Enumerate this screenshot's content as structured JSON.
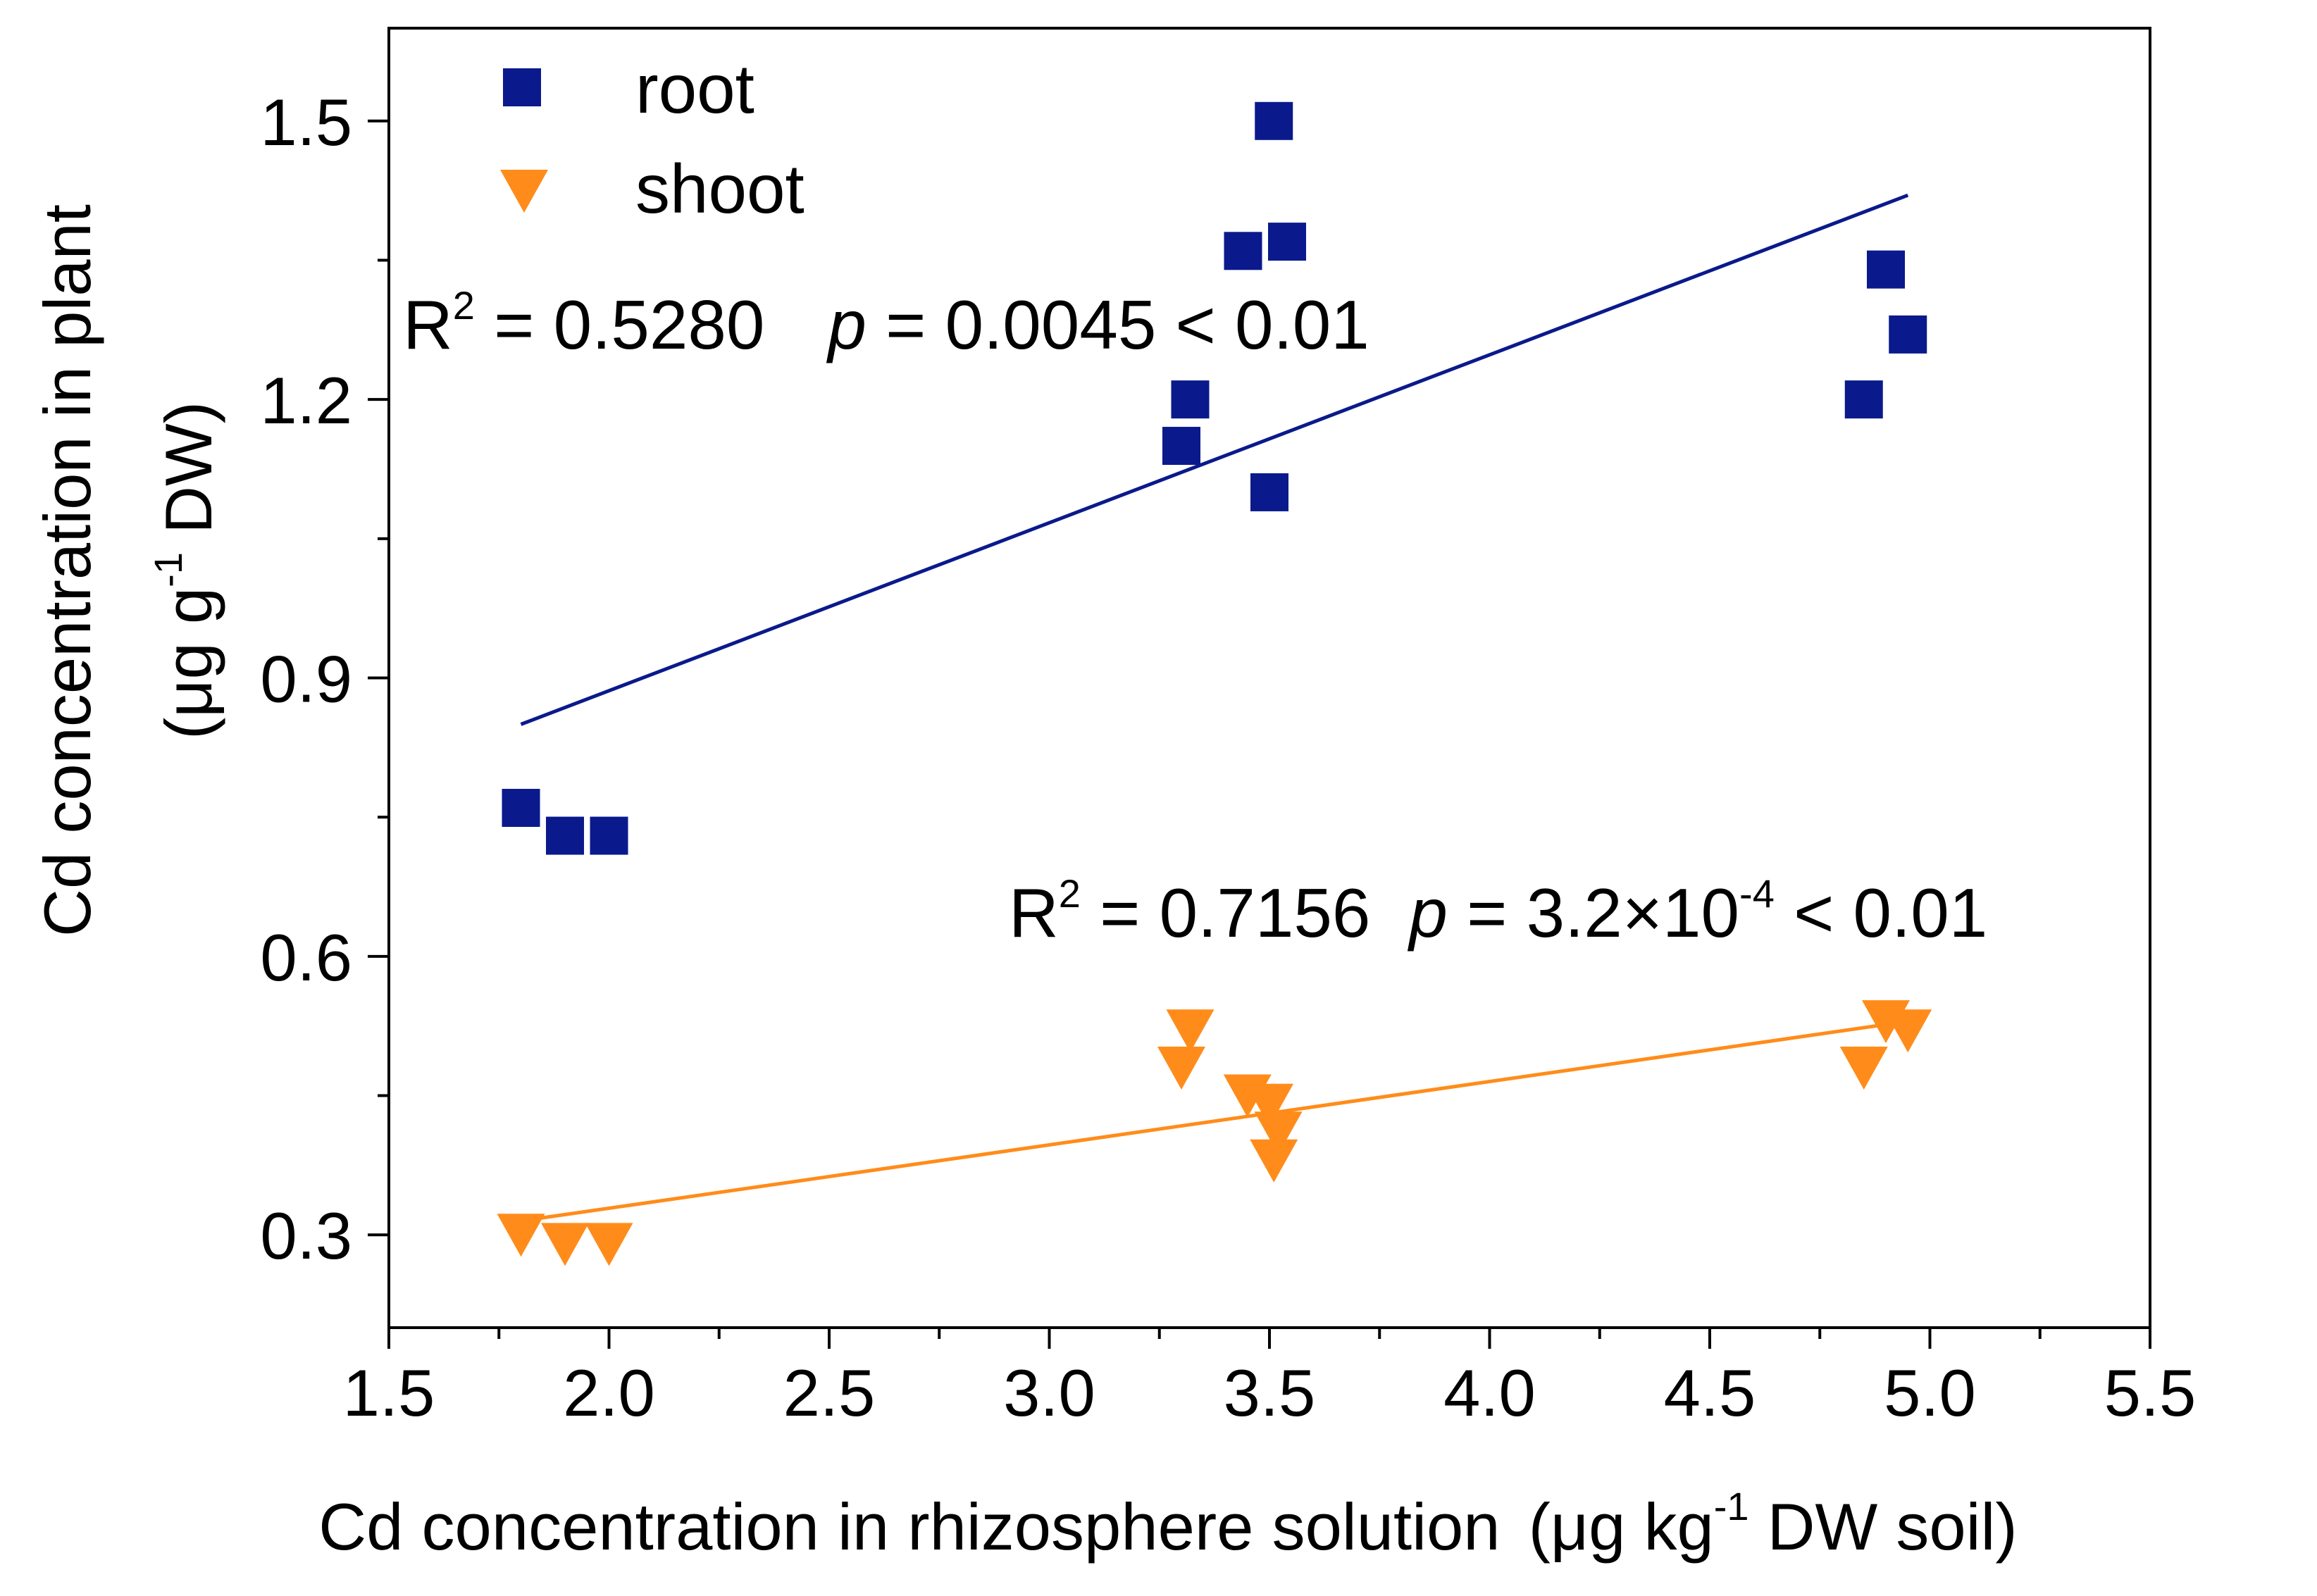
{
  "chart_data": {
    "type": "scatter",
    "title": "",
    "xlabel": "Cd concentration in rhizosphere solution",
    "xlabel_unit": {
      "open": "(",
      "mu": "μ",
      "pre": "g kg",
      "exp": "-1",
      "post": " DW soil)"
    },
    "ylabel": "Cd concentration in plant",
    "ylabel_unit": {
      "open": "(",
      "mu": "μ",
      "pre": "g g",
      "exp": "-1",
      "post": " DW)"
    },
    "xlim": [
      1.5,
      5.5
    ],
    "ylim": [
      0.2,
      1.6
    ],
    "xticks": [
      "1.5",
      "2.0",
      "2.5",
      "3.0",
      "3.5",
      "4.0",
      "4.5",
      "5.0",
      "5.5"
    ],
    "yticks": [
      "0.3",
      "0.6",
      "0.9",
      "1.2",
      "1.5"
    ],
    "legend_position": "top-left",
    "series": [
      {
        "name": "root",
        "marker": "square",
        "color": "#0a1a8c",
        "points": [
          [
            1.8,
            0.76
          ],
          [
            1.9,
            0.73
          ],
          [
            2.0,
            0.73
          ],
          [
            3.3,
            1.15
          ],
          [
            3.32,
            1.2
          ],
          [
            3.44,
            1.36
          ],
          [
            3.5,
            1.1
          ],
          [
            3.51,
            1.5
          ],
          [
            3.54,
            1.37
          ],
          [
            4.85,
            1.2
          ],
          [
            4.9,
            1.34
          ],
          [
            4.95,
            1.27
          ]
        ],
        "fit": {
          "x": [
            1.8,
            4.95
          ],
          "y": [
            0.85,
            1.42
          ]
        },
        "annotation": {
          "r2_label": "R",
          "r2_exp": "2",
          "r2_value": " = 0.5280",
          "p_symbol": "p",
          "p_text": " = 0.0045 < 0.01"
        }
      },
      {
        "name": "shoot",
        "marker": "triangle-down",
        "color": "#ff8c1a",
        "points": [
          [
            1.8,
            0.3
          ],
          [
            1.9,
            0.29
          ],
          [
            2.0,
            0.29
          ],
          [
            3.3,
            0.48
          ],
          [
            3.32,
            0.52
          ],
          [
            3.45,
            0.45
          ],
          [
            3.5,
            0.44
          ],
          [
            3.52,
            0.41
          ],
          [
            3.51,
            0.38
          ],
          [
            4.85,
            0.48
          ],
          [
            4.9,
            0.53
          ],
          [
            4.95,
            0.52
          ]
        ],
        "fit": {
          "x": [
            1.8,
            4.95
          ],
          "y": [
            0.315,
            0.53
          ]
        },
        "annotation": {
          "r2_label": "R",
          "r2_exp": "2",
          "r2_value": " = 0.7156",
          "p_symbol": "p",
          "p_text": " = 3.2×10",
          "p_exp": "-4",
          "p_tail": " < 0.01"
        }
      }
    ]
  }
}
